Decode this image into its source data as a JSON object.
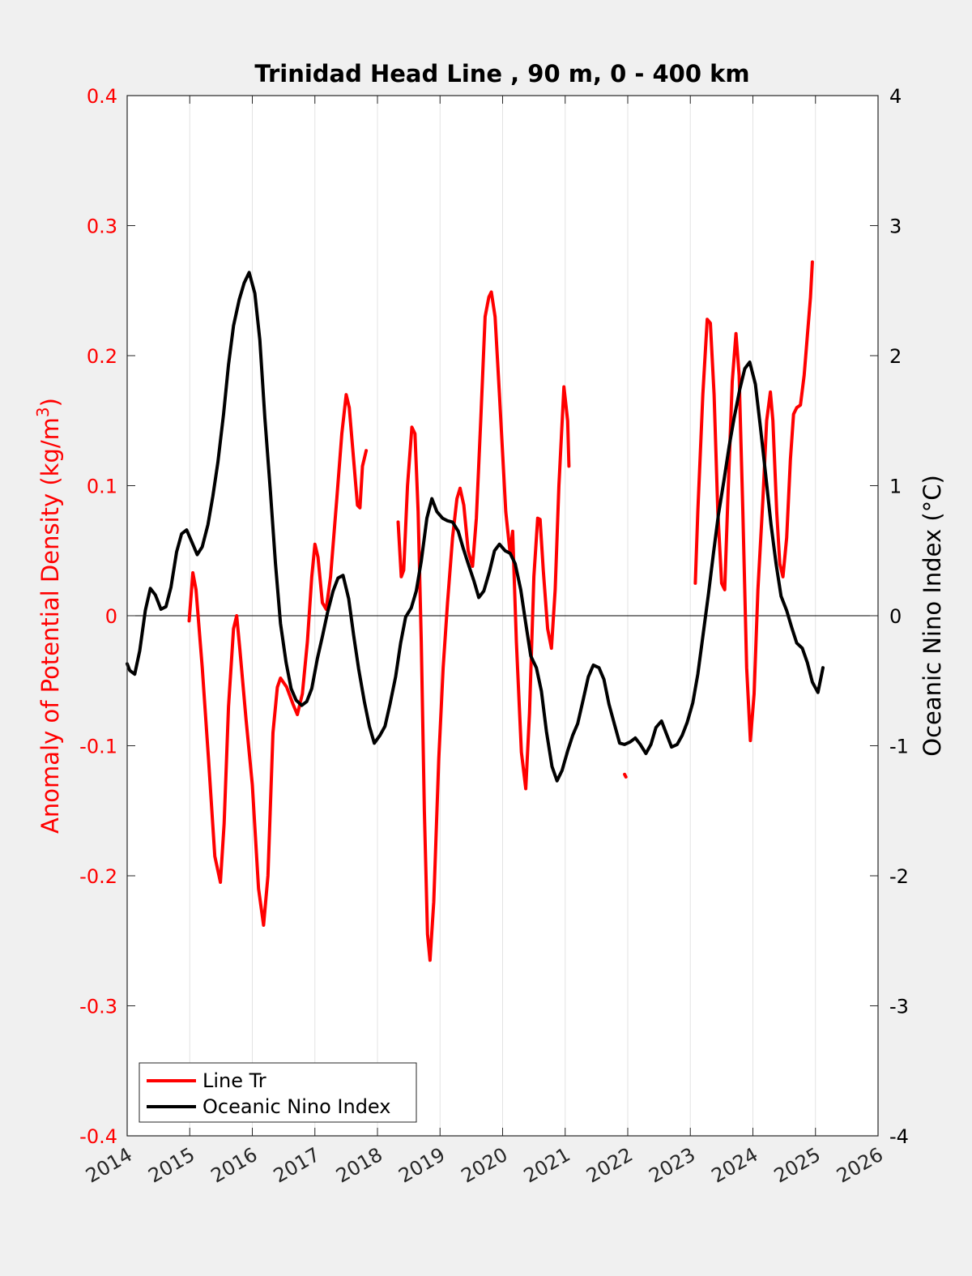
{
  "chart_data": {
    "type": "line",
    "title": "Trinidad Head Line , 90 m, 0 - 400 km",
    "xlabel": "",
    "ylabel_left": "Anomaly of Potential Density (kg/m",
    "ylabel_left_sup": "3",
    "ylabel_left_end": ")",
    "ylabel_right": "Oceanic Nino Index (°C)",
    "xlim": [
      2014,
      2026
    ],
    "ylim_left": [
      -0.4,
      0.4
    ],
    "ylim_right": [
      -4,
      4
    ],
    "x_ticks": [
      "2014",
      "2015",
      "2016",
      "2017",
      "2018",
      "2019",
      "2020",
      "2021",
      "2022",
      "2023",
      "2024",
      "2025",
      "2026"
    ],
    "y_left_ticks": [
      "-0.4",
      "-0.3",
      "-0.2",
      "-0.1",
      "0",
      "0.1",
      "0.2",
      "0.3",
      "0.4"
    ],
    "y_right_ticks": [
      "-4",
      "-3",
      "-2",
      "-1",
      "0",
      "1",
      "2",
      "3",
      "4"
    ],
    "grid": "vertical",
    "legend_position": "bottom-left",
    "colors": {
      "line_tr": "#ff0000",
      "oni": "#000000",
      "left_axis": "#ff0000",
      "right_axis": "#000000"
    },
    "series": [
      {
        "name": "Line Tr",
        "axis": "left",
        "color": "#ff0000",
        "segments": [
          [
            [
              2014.99,
              -0.004
            ],
            [
              2015.05,
              0.033
            ],
            [
              2015.1,
              0.02
            ],
            [
              2015.2,
              -0.04
            ],
            [
              2015.3,
              -0.11
            ],
            [
              2015.4,
              -0.185
            ],
            [
              2015.49,
              -0.205
            ],
            [
              2015.55,
              -0.16
            ],
            [
              2015.62,
              -0.07
            ],
            [
              2015.7,
              -0.01
            ],
            [
              2015.75,
              0.0
            ],
            [
              2015.8,
              -0.025
            ],
            [
              2015.9,
              -0.08
            ],
            [
              2016.0,
              -0.13
            ],
            [
              2016.1,
              -0.21
            ],
            [
              2016.18,
              -0.238
            ],
            [
              2016.25,
              -0.2
            ],
            [
              2016.33,
              -0.09
            ],
            [
              2016.4,
              -0.055
            ],
            [
              2016.45,
              -0.048
            ],
            [
              2016.55,
              -0.055
            ],
            [
              2016.65,
              -0.068
            ],
            [
              2016.72,
              -0.076
            ],
            [
              2016.8,
              -0.06
            ],
            [
              2016.88,
              -0.02
            ],
            [
              2016.95,
              0.03
            ],
            [
              2017.0,
              0.055
            ],
            [
              2017.05,
              0.045
            ],
            [
              2017.12,
              0.01
            ],
            [
              2017.18,
              0.005
            ],
            [
              2017.25,
              0.03
            ],
            [
              2017.35,
              0.09
            ],
            [
              2017.43,
              0.14
            ],
            [
              2017.5,
              0.17
            ],
            [
              2017.55,
              0.16
            ],
            [
              2017.62,
              0.12
            ],
            [
              2017.68,
              0.085
            ],
            [
              2017.72,
              0.083
            ],
            [
              2017.76,
              0.115
            ],
            [
              2017.82,
              0.127
            ]
          ],
          [
            [
              2018.33,
              0.072
            ],
            [
              2018.38,
              0.03
            ],
            [
              2018.42,
              0.035
            ],
            [
              2018.48,
              0.1
            ],
            [
              2018.55,
              0.145
            ],
            [
              2018.6,
              0.14
            ],
            [
              2018.65,
              0.08
            ],
            [
              2018.7,
              -0.02
            ],
            [
              2018.75,
              -0.15
            ],
            [
              2018.8,
              -0.245
            ],
            [
              2018.84,
              -0.265
            ],
            [
              2018.9,
              -0.22
            ],
            [
              2018.98,
              -0.11
            ],
            [
              2019.05,
              -0.04
            ],
            [
              2019.12,
              0.01
            ],
            [
              2019.2,
              0.06
            ],
            [
              2019.27,
              0.09
            ],
            [
              2019.32,
              0.098
            ],
            [
              2019.38,
              0.085
            ],
            [
              2019.45,
              0.05
            ],
            [
              2019.52,
              0.038
            ],
            [
              2019.58,
              0.075
            ],
            [
              2019.65,
              0.15
            ],
            [
              2019.72,
              0.23
            ],
            [
              2019.78,
              0.245
            ],
            [
              2019.82,
              0.249
            ],
            [
              2019.88,
              0.23
            ],
            [
              2019.95,
              0.17
            ],
            [
              2020.05,
              0.08
            ],
            [
              2020.12,
              0.048
            ],
            [
              2020.16,
              0.065
            ],
            [
              2020.22,
              -0.02
            ],
            [
              2020.3,
              -0.105
            ],
            [
              2020.37,
              -0.133
            ],
            [
              2020.43,
              -0.075
            ],
            [
              2020.5,
              0.03
            ],
            [
              2020.56,
              0.075
            ],
            [
              2020.6,
              0.074
            ],
            [
              2020.65,
              0.035
            ],
            [
              2020.72,
              -0.01
            ],
            [
              2020.78,
              -0.025
            ],
            [
              2020.84,
              0.02
            ],
            [
              2020.9,
              0.1
            ],
            [
              2020.98,
              0.176
            ],
            [
              2021.04,
              0.15
            ],
            [
              2021.06,
              0.115
            ]
          ],
          [
            [
              2021.95,
              -0.122
            ],
            [
              2021.97,
              -0.124
            ]
          ],
          [
            [
              2023.08,
              0.025
            ],
            [
              2023.12,
              0.08
            ],
            [
              2023.2,
              0.17
            ],
            [
              2023.27,
              0.228
            ],
            [
              2023.32,
              0.225
            ],
            [
              2023.38,
              0.17
            ],
            [
              2023.44,
              0.08
            ],
            [
              2023.5,
              0.025
            ],
            [
              2023.55,
              0.02
            ],
            [
              2023.6,
              0.09
            ],
            [
              2023.67,
              0.18
            ],
            [
              2023.73,
              0.217
            ],
            [
              2023.78,
              0.185
            ],
            [
              2023.84,
              0.08
            ],
            [
              2023.9,
              -0.04
            ],
            [
              2023.96,
              -0.096
            ],
            [
              2024.02,
              -0.06
            ],
            [
              2024.08,
              0.02
            ],
            [
              2024.16,
              0.09
            ],
            [
              2024.22,
              0.15
            ],
            [
              2024.28,
              0.172
            ],
            [
              2024.32,
              0.15
            ],
            [
              2024.38,
              0.08
            ],
            [
              2024.43,
              0.04
            ],
            [
              2024.48,
              0.03
            ],
            [
              2024.54,
              0.06
            ],
            [
              2024.6,
              0.12
            ],
            [
              2024.65,
              0.155
            ],
            [
              2024.7,
              0.16
            ],
            [
              2024.76,
              0.162
            ],
            [
              2024.82,
              0.185
            ],
            [
              2024.87,
              0.215
            ],
            [
              2024.92,
              0.245
            ],
            [
              2024.95,
              0.272
            ]
          ]
        ]
      },
      {
        "name": "Oceanic Nino Index",
        "axis": "right",
        "color": "#000000",
        "segments": [
          [
            [
              2014.0,
              -0.37
            ],
            [
              2014.04,
              -0.42
            ],
            [
              2014.12,
              -0.45
            ],
            [
              2014.2,
              -0.27
            ],
            [
              2014.29,
              0.04
            ],
            [
              2014.37,
              0.21
            ],
            [
              2014.45,
              0.16
            ],
            [
              2014.54,
              0.05
            ],
            [
              2014.62,
              0.07
            ],
            [
              2014.7,
              0.22
            ],
            [
              2014.79,
              0.49
            ],
            [
              2014.87,
              0.63
            ],
            [
              2014.95,
              0.66
            ],
            [
              2015.04,
              0.56
            ],
            [
              2015.12,
              0.47
            ],
            [
              2015.2,
              0.53
            ],
            [
              2015.29,
              0.7
            ],
            [
              2015.37,
              0.92
            ],
            [
              2015.45,
              1.18
            ],
            [
              2015.54,
              1.55
            ],
            [
              2015.62,
              1.93
            ],
            [
              2015.7,
              2.23
            ],
            [
              2015.79,
              2.43
            ],
            [
              2015.87,
              2.56
            ],
            [
              2015.95,
              2.64
            ],
            [
              2016.04,
              2.48
            ],
            [
              2016.12,
              2.12
            ],
            [
              2016.2,
              1.52
            ],
            [
              2016.29,
              0.95
            ],
            [
              2016.37,
              0.4
            ],
            [
              2016.45,
              -0.06
            ],
            [
              2016.54,
              -0.36
            ],
            [
              2016.62,
              -0.56
            ],
            [
              2016.7,
              -0.65
            ],
            [
              2016.79,
              -0.69
            ],
            [
              2016.87,
              -0.66
            ],
            [
              2016.95,
              -0.56
            ],
            [
              2017.04,
              -0.33
            ],
            [
              2017.12,
              -0.16
            ],
            [
              2017.2,
              0.02
            ],
            [
              2017.29,
              0.19
            ],
            [
              2017.37,
              0.29
            ],
            [
              2017.45,
              0.31
            ],
            [
              2017.54,
              0.13
            ],
            [
              2017.62,
              -0.15
            ],
            [
              2017.7,
              -0.41
            ],
            [
              2017.79,
              -0.66
            ],
            [
              2017.87,
              -0.85
            ],
            [
              2017.95,
              -0.98
            ],
            [
              2018.04,
              -0.92
            ],
            [
              2018.12,
              -0.85
            ],
            [
              2018.2,
              -0.68
            ],
            [
              2018.29,
              -0.47
            ],
            [
              2018.37,
              -0.21
            ],
            [
              2018.45,
              -0.01
            ],
            [
              2018.54,
              0.06
            ],
            [
              2018.62,
              0.19
            ],
            [
              2018.7,
              0.42
            ],
            [
              2018.79,
              0.75
            ],
            [
              2018.87,
              0.9
            ],
            [
              2018.95,
              0.8
            ],
            [
              2019.04,
              0.75
            ],
            [
              2019.12,
              0.73
            ],
            [
              2019.2,
              0.72
            ],
            [
              2019.29,
              0.65
            ],
            [
              2019.37,
              0.52
            ],
            [
              2019.45,
              0.4
            ],
            [
              2019.54,
              0.27
            ],
            [
              2019.62,
              0.14
            ],
            [
              2019.7,
              0.19
            ],
            [
              2019.79,
              0.34
            ],
            [
              2019.87,
              0.5
            ],
            [
              2019.95,
              0.55
            ],
            [
              2020.04,
              0.5
            ],
            [
              2020.12,
              0.48
            ],
            [
              2020.2,
              0.4
            ],
            [
              2020.29,
              0.2
            ],
            [
              2020.37,
              -0.06
            ],
            [
              2020.45,
              -0.31
            ],
            [
              2020.54,
              -0.4
            ],
            [
              2020.62,
              -0.58
            ],
            [
              2020.7,
              -0.89
            ],
            [
              2020.79,
              -1.16
            ],
            [
              2020.87,
              -1.27
            ],
            [
              2020.95,
              -1.19
            ],
            [
              2021.04,
              -1.04
            ],
            [
              2021.12,
              -0.92
            ],
            [
              2021.2,
              -0.83
            ],
            [
              2021.29,
              -0.64
            ],
            [
              2021.37,
              -0.47
            ],
            [
              2021.45,
              -0.38
            ],
            [
              2021.54,
              -0.4
            ],
            [
              2021.62,
              -0.49
            ],
            [
              2021.7,
              -0.68
            ],
            [
              2021.79,
              -0.84
            ],
            [
              2021.87,
              -0.98
            ],
            [
              2021.95,
              -0.99
            ],
            [
              2022.04,
              -0.97
            ],
            [
              2022.12,
              -0.94
            ],
            [
              2022.2,
              -0.99
            ],
            [
              2022.29,
              -1.06
            ],
            [
              2022.37,
              -0.99
            ],
            [
              2022.45,
              -0.86
            ],
            [
              2022.54,
              -0.81
            ],
            [
              2022.62,
              -0.91
            ],
            [
              2022.7,
              -1.01
            ],
            [
              2022.79,
              -0.99
            ],
            [
              2022.87,
              -0.92
            ],
            [
              2022.95,
              -0.82
            ],
            [
              2023.04,
              -0.67
            ],
            [
              2023.12,
              -0.45
            ],
            [
              2023.2,
              -0.16
            ],
            [
              2023.29,
              0.17
            ],
            [
              2023.37,
              0.48
            ],
            [
              2023.45,
              0.78
            ],
            [
              2023.54,
              1.05
            ],
            [
              2023.62,
              1.3
            ],
            [
              2023.7,
              1.52
            ],
            [
              2023.79,
              1.74
            ],
            [
              2023.87,
              1.9
            ],
            [
              2023.95,
              1.95
            ],
            [
              2024.04,
              1.78
            ],
            [
              2024.12,
              1.45
            ],
            [
              2024.2,
              1.1
            ],
            [
              2024.29,
              0.7
            ],
            [
              2024.37,
              0.4
            ],
            [
              2024.45,
              0.15
            ],
            [
              2024.54,
              0.04
            ],
            [
              2024.62,
              -0.09
            ],
            [
              2024.7,
              -0.21
            ],
            [
              2024.79,
              -0.25
            ],
            [
              2024.87,
              -0.36
            ],
            [
              2024.95,
              -0.51
            ],
            [
              2025.04,
              -0.59
            ],
            [
              2025.12,
              -0.4
            ]
          ]
        ]
      }
    ]
  }
}
